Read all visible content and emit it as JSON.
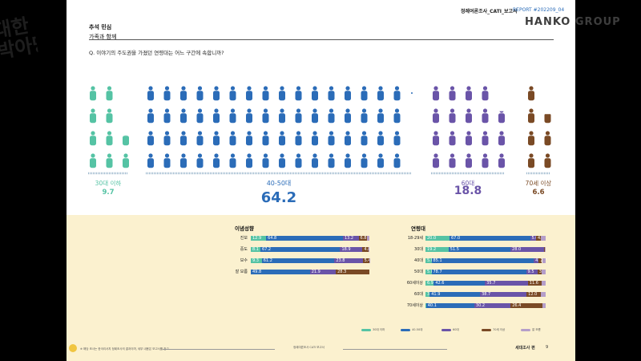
{
  "header": {
    "report_name": "정례여론조사_CATI_보고서",
    "report_code": "REPORT #202209_04",
    "section_title": "추석 민심",
    "section_subtitle": "가족과 함께",
    "question": "Q.   이야기의 주도권을 가졌던 연령대는 어느 구간에 속합니까?"
  },
  "brand": {
    "left_logo_text": "대한 박아당",
    "right_logo_text": "HANKO GROUP"
  },
  "colors": {
    "age30": "#55c3a4",
    "age4050": "#2b6cb8",
    "age60": "#6a54a8",
    "age70": "#7a4a25",
    "dontknow": "#b59ec9"
  },
  "chart_data": [
    {
      "type": "pictogram",
      "groups": [
        {
          "label": "30대 이하",
          "value": 9.7,
          "color": "#55c3a4",
          "icons": 9.7
        },
        {
          "label": "40-50대",
          "value": 64.2,
          "color": "#2b6cb8",
          "icons": 64.2
        },
        {
          "label": "60대",
          "value": 18.8,
          "color": "#6a54a8",
          "icons": 18.8
        },
        {
          "label": "70세 이상",
          "value": 6.6,
          "color": "#7a4a25",
          "icons": 6.6
        }
      ]
    },
    {
      "type": "bar",
      "title": "이념성향",
      "stacked": true,
      "orientation": "horizontal",
      "categories": [
        "진보",
        "중도",
        "보수",
        "잘 모름"
      ],
      "series": [
        {
          "values": [
            12.9,
            8.1,
            9.3,
            0.0
          ],
          "color": "#55c3a4"
        },
        {
          "values": [
            64.8,
            67.2,
            61.2,
            49.8
          ],
          "color": "#2b6cb8"
        },
        {
          "values": [
            13.2,
            18.9,
            23.8,
            21.9
          ],
          "color": "#6a54a8"
        },
        {
          "values": [
            6.8,
            4.8,
            5.4,
            28.3
          ],
          "color": "#7a4a25"
        },
        {
          "values": [
            2.3,
            1.0,
            0.3,
            0.0
          ],
          "color": "#b59ec9"
        }
      ],
      "labels": [
        [
          "12.9",
          "64.8",
          "13.2",
          "6.8",
          ""
        ],
        [
          "8.1",
          "67.2",
          "18.9",
          "4.8",
          ""
        ],
        [
          "9.3",
          "61.2",
          "23.8",
          "5.4",
          ""
        ],
        [
          "",
          "49.8",
          "21.9",
          "28.3",
          ""
        ]
      ]
    },
    {
      "type": "bar",
      "title": "연령대",
      "stacked": true,
      "orientation": "horizontal",
      "categories": [
        "18-29세",
        "30대",
        "40대",
        "50대",
        "60세이상",
        "60대",
        "70세이상"
      ],
      "series": [
        {
          "values": [
            20.0,
            19.2,
            5.0,
            5.0,
            6.9,
            3.5,
            0.5
          ],
          "color": "#55c3a4"
        },
        {
          "values": [
            67.0,
            51.5,
            85.1,
            78.7,
            42.6,
            41.9,
            40.1
          ],
          "color": "#2b6cb8"
        },
        {
          "values": [
            5.0,
            28.0,
            4.2,
            9.5,
            35.7,
            38.7,
            30.2
          ],
          "color": "#6a54a8"
        },
        {
          "values": [
            4.0,
            0.5,
            2.7,
            3.2,
            11.6,
            12.0,
            26.4
          ],
          "color": "#7a4a25"
        },
        {
          "values": [
            4.0,
            0.8,
            3.0,
            3.6,
            3.2,
            3.9,
            2.8
          ],
          "color": "#b59ec9"
        }
      ],
      "labels": [
        [
          "20.0",
          "67.0",
          "5.0",
          "4.0",
          ""
        ],
        [
          "19.2",
          "51.5",
          "28.0",
          "",
          ""
        ],
        [
          "5.0",
          "85.1",
          "4.2",
          "2.7",
          ""
        ],
        [
          "5.0",
          "78.7",
          "9.5",
          "3.2",
          ""
        ],
        [
          "6.9",
          "42.6",
          "35.7",
          "11.6",
          ""
        ],
        [
          "3.5",
          "41.9",
          "38.7",
          "12.0",
          ""
        ],
        [
          "0.5",
          "40.1",
          "30.2",
          "26.4",
          ""
        ]
      ]
    }
  ],
  "legend": [
    {
      "label": "30대 이하",
      "color": "#55c3a4"
    },
    {
      "label": "40-50대",
      "color": "#2b6cb8"
    },
    {
      "label": "60대",
      "color": "#6a54a8"
    },
    {
      "label": "70세 이상",
      "color": "#7a4a25"
    },
    {
      "label": "잘 모름",
      "color": "#b59ec9"
    }
  ],
  "footer": {
    "left_note": "※ 해당 조사는 한국리서치 정례조사의 결과이며, 세부 내용은 보고서를 참고",
    "center": "정례여론조사 CATI 보고서",
    "right_title": "세대조사 편",
    "page": "9"
  }
}
